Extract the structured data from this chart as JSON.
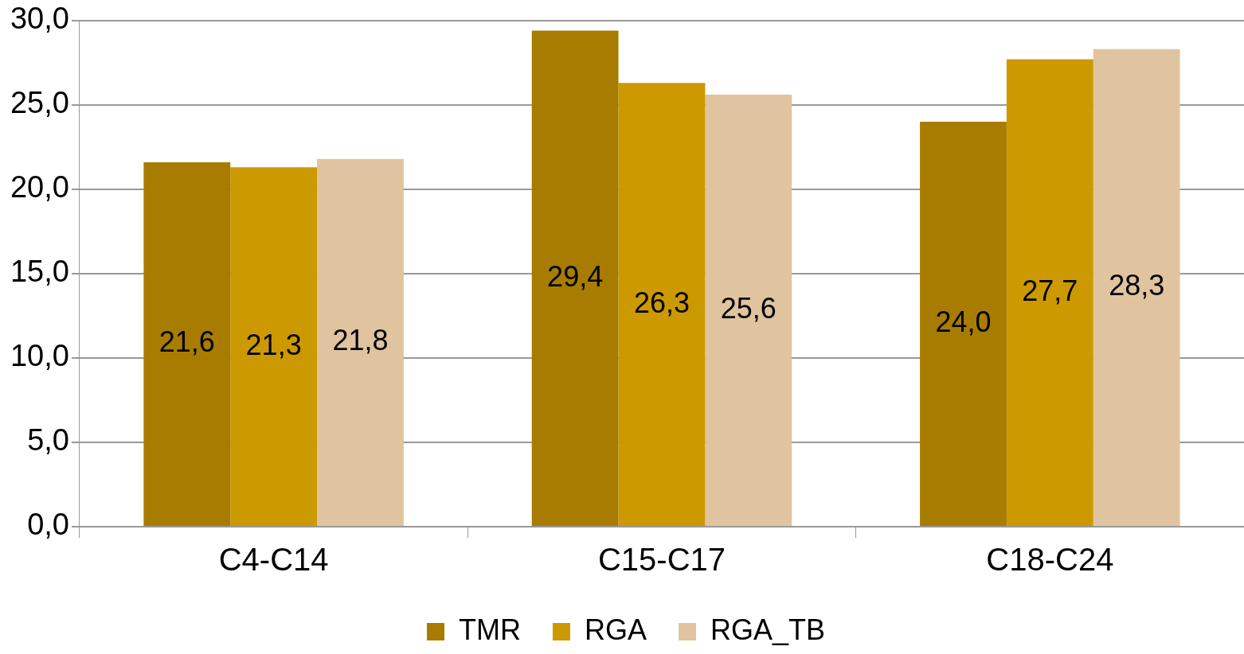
{
  "chart_data": {
    "type": "bar",
    "categories": [
      "C4-C14",
      "C15-C17",
      "C18-C24"
    ],
    "series": [
      {
        "name": "TMR",
        "color": "#a87c00",
        "values": [
          21.6,
          29.4,
          24.0
        ],
        "value_labels": [
          "21,6",
          "29,4",
          "24,0"
        ]
      },
      {
        "name": "RGA",
        "color": "#cc9900",
        "values": [
          21.3,
          26.3,
          27.7
        ],
        "value_labels": [
          "21,3",
          "26,3",
          "27,7"
        ]
      },
      {
        "name": "RGA_TB",
        "color": "#e0c49f",
        "values": [
          21.8,
          25.6,
          28.3
        ],
        "value_labels": [
          "21,8",
          "25,6",
          "28,3"
        ]
      }
    ],
    "ylim": [
      0,
      30
    ],
    "yticks": [
      {
        "value": 0,
        "label": "0,0"
      },
      {
        "value": 5,
        "label": "5,0"
      },
      {
        "value": 10,
        "label": "10,0"
      },
      {
        "value": 15,
        "label": "15,0"
      },
      {
        "value": 20,
        "label": "20,0"
      },
      {
        "value": 25,
        "label": "25,0"
      },
      {
        "value": 30,
        "label": "30,0"
      }
    ],
    "grid": "y",
    "legend": "bottom"
  }
}
